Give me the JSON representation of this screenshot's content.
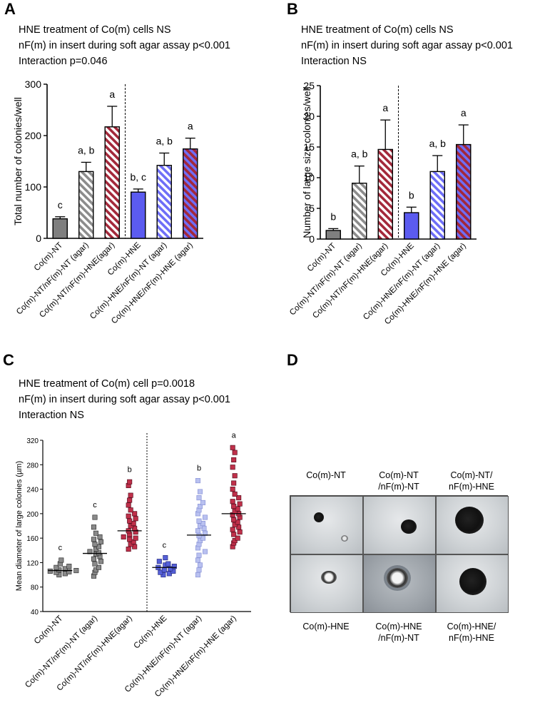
{
  "panels": {
    "A": {
      "letter": "A",
      "caption": [
        "HNE treatment of Co(m) cells NS",
        "nF(m) in insert during soft agar assay p<0.001",
        "Interaction p=0.046"
      ]
    },
    "B": {
      "letter": "B",
      "caption": [
        "HNE treatment of Co(m) cells NS",
        "nF(m) in insert during soft agar assay  p<0.001",
        "Interaction NS"
      ]
    },
    "C": {
      "letter": "C",
      "caption": [
        "HNE treatment of Co(m) cell  p=0.0018",
        "nF(m) in insert during soft agar assay  p<0.001",
        "Interaction NS"
      ]
    },
    "D": {
      "letter": "D",
      "top_labels": [
        "Co(m)-NT",
        "Co(m)-NT\n/nF(m)-NT",
        "Co(m)-NT/\nnF(m)-HNE"
      ],
      "bottom_labels": [
        "Co(m)-HNE",
        "Co(m)-HNE\n/nF(m)-NT",
        "Co(m)-HNE/\nnF(m)-HNE"
      ]
    }
  },
  "colors": {
    "gray": "#7f7f7f",
    "red": "#b02a3a",
    "blue": "#5b5bf0",
    "hatch_gray": "#8c8c8c",
    "hatch_red": "#a3283a",
    "hatch_blue": "#6e6ef7"
  },
  "chart_data": [
    {
      "type": "bar",
      "panel": "A",
      "ylabel": "Total number of colonies/well",
      "ylim": [
        0,
        300
      ],
      "yticks": [
        0,
        100,
        200,
        300
      ],
      "categories": [
        "Co(m)-NT",
        "Co(m)-NT/nF(m)-NT (agar)",
        "Co(m)-NT/nF(m)-HNE(agar)",
        "Co(m)-HNE",
        "Co(m)-HNE/nF(m)-NT (agar)",
        "Co(m)-HNE/nF(m)-HNE (agar)"
      ],
      "values": [
        38,
        130,
        217,
        90,
        142,
        174
      ],
      "errors": [
        4,
        18,
        40,
        6,
        24,
        21
      ],
      "letters": [
        "c",
        "a, b",
        "a",
        "b, c",
        "a, b",
        "a"
      ],
      "styles": [
        "solid-gray",
        "hatch-gray",
        "hatch-red",
        "solid-blue",
        "hatch-blue",
        "hatch-red-blue"
      ]
    },
    {
      "type": "bar",
      "panel": "B",
      "ylabel": "Number of large size colonies/well",
      "ylim": [
        0,
        25
      ],
      "yticks": [
        0,
        5,
        10,
        15,
        20,
        25
      ],
      "categories": [
        "Co(m)-NT",
        "Co(m)-NT/nF(m)-NT (agar)",
        "Co(m)-NT/nF(m)-HNE(agar)",
        "Co(m)-HNE",
        "Co(m)-HNE/nF(m)-NT (agar)",
        "Co(m)-HNE/nF(m)-HNE (agar)"
      ],
      "values": [
        1.4,
        9.1,
        14.6,
        4.3,
        11.0,
        15.4
      ],
      "errors": [
        0.3,
        2.8,
        4.8,
        0.9,
        2.6,
        3.2
      ],
      "letters": [
        "b",
        "a, b",
        "a",
        "b",
        "a, b",
        "a"
      ],
      "styles": [
        "solid-gray",
        "hatch-gray",
        "hatch-red",
        "solid-blue",
        "hatch-blue",
        "hatch-red-blue"
      ]
    },
    {
      "type": "scatter",
      "panel": "C",
      "ylabel": "Mean diameter of large colonies (µm)",
      "ylim": [
        40,
        320
      ],
      "yticks": [
        40,
        80,
        120,
        160,
        200,
        240,
        280,
        320
      ],
      "categories": [
        "Co(m)-NT",
        "Co(m)-NT/nF(m)-NT (agar)",
        "Co(m)-NT/nF(m)-HNE(agar)",
        "Co(m)-HNE",
        "Co(m)-HNE/nF(m)-NT (agar)",
        "Co(m)-HNE/nF(m)-HNE (agar)"
      ],
      "means": [
        107,
        135,
        172,
        112,
        165,
        200
      ],
      "letters": [
        "c",
        "c",
        "b",
        "c",
        "b",
        "a"
      ],
      "points": [
        [
          100,
          102,
          104,
          105,
          106,
          107,
          108,
          110,
          112,
          114,
          118,
          124
        ],
        [
          98,
          104,
          108,
          112,
          118,
          122,
          126,
          130,
          134,
          136,
          138,
          142,
          146,
          150,
          154,
          158,
          162,
          168,
          178,
          194
        ],
        [
          142,
          146,
          150,
          154,
          158,
          160,
          162,
          166,
          170,
          172,
          176,
          180,
          184,
          188,
          192,
          196,
          200,
          206,
          214,
          222,
          230,
          246,
          252
        ],
        [
          100,
          102,
          104,
          106,
          108,
          110,
          112,
          114,
          116,
          118,
          122,
          128
        ],
        [
          100,
          108,
          116,
          124,
          132,
          138,
          144,
          150,
          156,
          160,
          164,
          168,
          172,
          176,
          180,
          184,
          188,
          194,
          200,
          206,
          212,
          218,
          226,
          236,
          254
        ],
        [
          146,
          152,
          156,
          160,
          166,
          170,
          174,
          178,
          182,
          186,
          190,
          194,
          198,
          200,
          204,
          208,
          212,
          216,
          220,
          226,
          232,
          240,
          250,
          262,
          276,
          288,
          300,
          308
        ]
      ],
      "colors": [
        "gray",
        "gray",
        "red",
        "blue",
        "lightblue",
        "red"
      ]
    }
  ]
}
